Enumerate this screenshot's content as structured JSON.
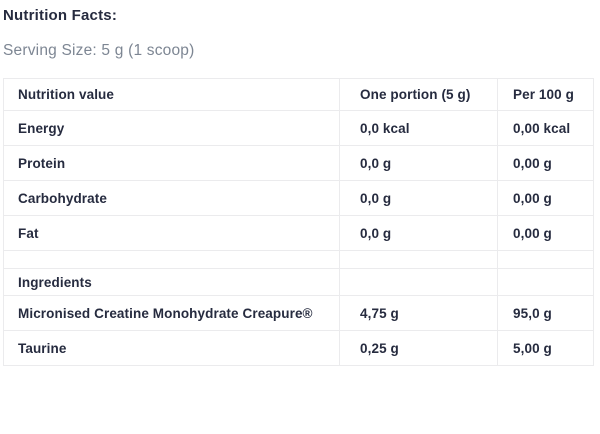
{
  "header": {
    "title": "Nutrition Facts:",
    "serving_size": "Serving Size: 5 g (1 scoop)"
  },
  "table": {
    "columns": [
      "Nutrition value",
      "One portion (5 g)",
      "Per 100 g"
    ],
    "rows": [
      {
        "kind": "data",
        "cells": [
          "Energy",
          "0,0 kcal",
          "0,00 kcal"
        ]
      },
      {
        "kind": "data",
        "cells": [
          "Protein",
          "0,0 g",
          "0,00 g"
        ]
      },
      {
        "kind": "data",
        "cells": [
          "Carbohydrate",
          "0,0 g",
          "0,00 g"
        ]
      },
      {
        "kind": "data",
        "cells": [
          "Fat",
          "0,0 g",
          "0,00 g"
        ]
      },
      {
        "kind": "spacer",
        "cells": [
          "",
          "",
          ""
        ]
      },
      {
        "kind": "section",
        "cells": [
          "Ingredients",
          "",
          ""
        ]
      },
      {
        "kind": "data",
        "cells": [
          "Micronised Creatine Monohydrate Creapure®",
          "4,75 g",
          "95,0 g"
        ]
      },
      {
        "kind": "data",
        "cells": [
          "Taurine",
          "0,25 g",
          "5,00 g"
        ]
      }
    ]
  },
  "colors": {
    "text": "#262b3f",
    "muted_text": "#7d8693",
    "border": "#ebebed",
    "background": "#ffffff"
  }
}
